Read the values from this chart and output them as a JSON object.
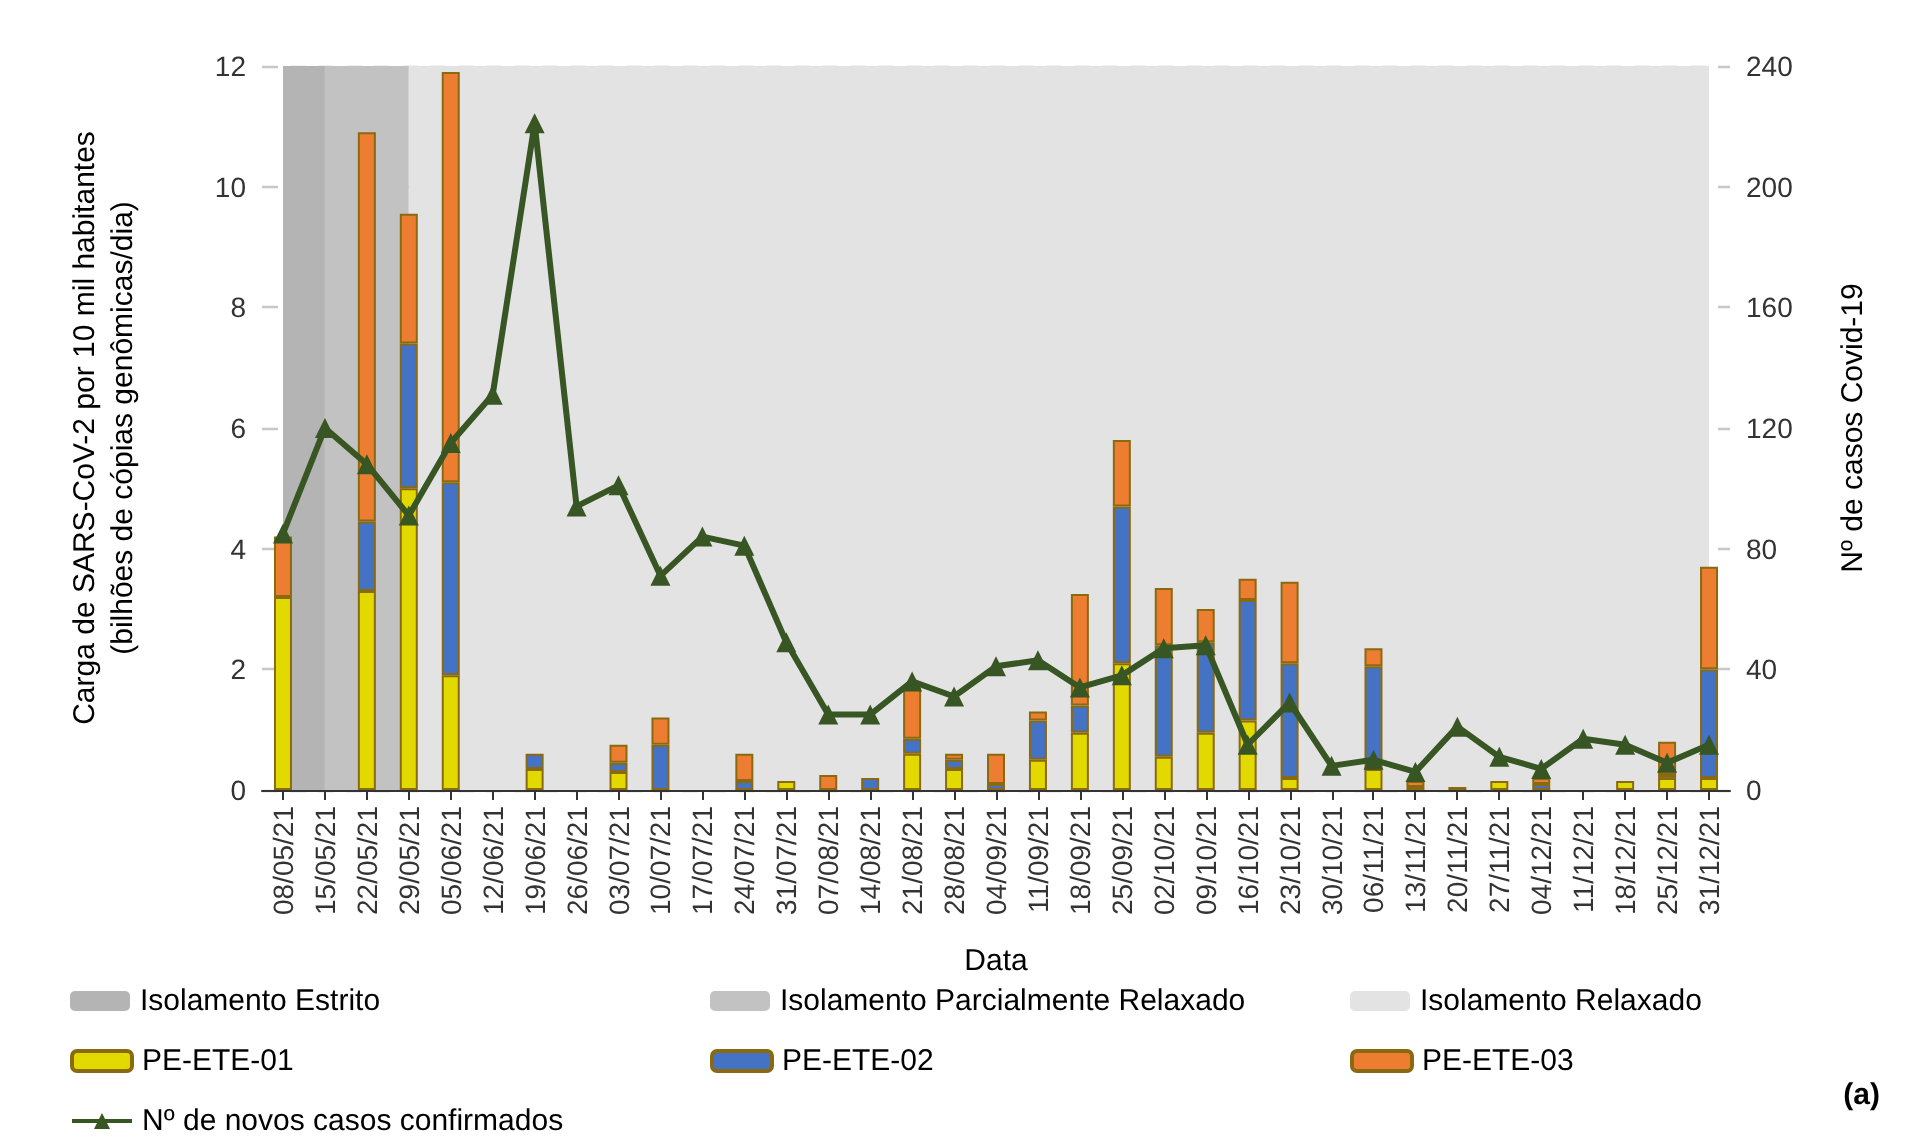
{
  "chart_data": {
    "type": "bar",
    "stacked": true,
    "xlabel": "Data",
    "ylabel": "Carga de SARS-CoV-2 por 10 mil habitantes\n(bilhões de cópias genômicas/dia)",
    "y2label": "Nº de casos Covid-19",
    "categories": [
      "08/05/21",
      "15/05/21",
      "22/05/21",
      "29/05/21",
      "05/06/21",
      "12/06/21",
      "19/06/21",
      "26/06/21",
      "03/07/21",
      "10/07/21",
      "17/07/21",
      "24/07/21",
      "31/07/21",
      "07/08/21",
      "14/08/21",
      "21/08/21",
      "28/08/21",
      "04/09/21",
      "11/09/21",
      "18/09/21",
      "25/09/21",
      "02/10/21",
      "09/10/21",
      "16/10/21",
      "23/10/21",
      "30/10/21",
      "06/11/21",
      "13/11/21",
      "20/11/21",
      "27/11/21",
      "04/12/21",
      "11/12/21",
      "18/12/21",
      "25/12/21",
      "31/12/21"
    ],
    "series": [
      {
        "name": "PE-ETE-01",
        "color": "#e2d900",
        "values": [
          3.2,
          0,
          3.3,
          5.0,
          1.9,
          0,
          0.35,
          0,
          0.3,
          0,
          0,
          0,
          0.15,
          0,
          0,
          0.6,
          0.35,
          0,
          0.5,
          0.95,
          2.1,
          0.55,
          0.95,
          1.15,
          0.2,
          0,
          0.35,
          0.05,
          0.05,
          0.15,
          0,
          0,
          0.15,
          0.2,
          0.2
        ]
      },
      {
        "name": "PE-ETE-02",
        "color": "#4472c4",
        "values": [
          0,
          0,
          1.15,
          2.4,
          3.2,
          0,
          0.25,
          0,
          0.15,
          0.75,
          0,
          0.15,
          0,
          0,
          0.2,
          0.25,
          0.15,
          0.1,
          0.65,
          0.45,
          2.6,
          1.85,
          1.5,
          2.0,
          1.9,
          0,
          1.7,
          0,
          0,
          0,
          0.1,
          0,
          0,
          0.05,
          1.8
        ]
      },
      {
        "name": "PE-ETE-03",
        "color": "#ed7d31",
        "values": [
          1.0,
          0,
          6.45,
          2.15,
          6.8,
          0,
          0,
          0,
          0.3,
          0.45,
          0,
          0.45,
          0,
          0.25,
          0,
          0.85,
          0.1,
          0.5,
          0.15,
          1.85,
          1.1,
          0.95,
          0.55,
          0.35,
          1.35,
          0,
          0.3,
          0.1,
          0,
          0,
          0.1,
          0,
          0,
          0.55,
          1.7
        ]
      },
      {
        "name": "Nº de novos casos confirmados",
        "type": "line",
        "axis": "y2",
        "color": "#375623",
        "marker": "triangle",
        "values": [
          85,
          120,
          108,
          91,
          115,
          131,
          221,
          94,
          101,
          71,
          84,
          81,
          49,
          25,
          25,
          36,
          31,
          41,
          43,
          34,
          38,
          47,
          48,
          15,
          29,
          8,
          10,
          6,
          21,
          11,
          7,
          17,
          15,
          9,
          15
        ]
      }
    ],
    "bands": [
      {
        "axis": "x",
        "from": "08/05/21",
        "to": "15/05/21",
        "label": "Isolamento Estrito",
        "color": "#b4b4b4"
      },
      {
        "axis": "x",
        "from": "15/05/21",
        "to": "29/05/21",
        "label": "Isolamento Parcialmente Relaxado",
        "color": "#c2c2c2"
      },
      {
        "axis": "x",
        "from": "29/05/21",
        "to": "31/12/21",
        "label": "Isolamento Relaxado",
        "color": "#e3e3e3"
      }
    ],
    "ylim": [
      0,
      12
    ],
    "yticks": [
      0,
      2,
      4,
      6,
      8,
      10,
      12
    ],
    "y2lim": [
      0,
      240
    ],
    "y2ticks": [
      0,
      40,
      80,
      120,
      160,
      200,
      240
    ],
    "grid": "y",
    "legend": "bottom",
    "annotations": [
      "(a)"
    ]
  }
}
